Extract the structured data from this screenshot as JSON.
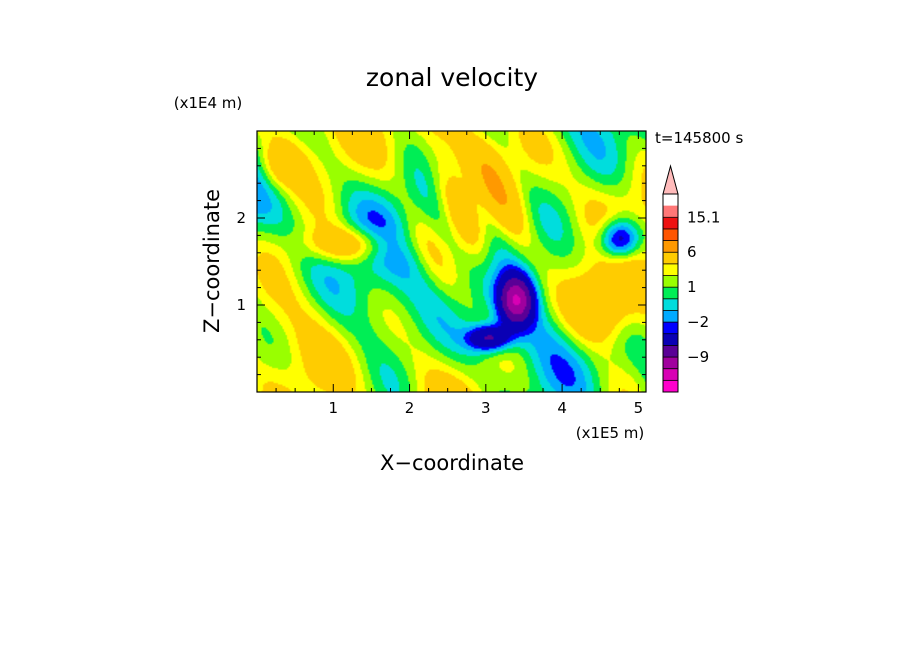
{
  "chart_data": {
    "type": "heatmap",
    "title": "zonal velocity",
    "xlabel": "X−coordinate",
    "ylabel": "Z−coordinate",
    "x_multiplier": "(x1E5 m)",
    "y_multiplier": "(x1E4 m)",
    "time_label": "t=145800 s",
    "xlim": [
      0,
      5.1
    ],
    "ylim": [
      0,
      3.0
    ],
    "x_ticks": [
      1,
      2,
      3,
      4,
      5
    ],
    "y_ticks": [
      1,
      2
    ],
    "colorbar": {
      "levels": [
        -15.1,
        -12,
        -9,
        -6,
        -3,
        -2,
        -1,
        0,
        1,
        2,
        3,
        6,
        9,
        12,
        15.1
      ],
      "colors": [
        "#ff00cc",
        "#d800b4",
        "#a0009e",
        "#5a0096",
        "#0a00b4",
        "#0000ff",
        "#00aaff",
        "#00dddd",
        "#00ee55",
        "#99ff00",
        "#ffff00",
        "#ffcc00",
        "#ff9900",
        "#ff5500",
        "#ee1111",
        "#ff7777",
        "#ffbbbb"
      ],
      "labels": [
        {
          "value": 15.1,
          "text": "15.1"
        },
        {
          "value": 6,
          "text": "6"
        },
        {
          "value": 1,
          "text": "1"
        },
        {
          "value": -2,
          "text": "−2"
        },
        {
          "value": -9,
          "text": "−9"
        }
      ]
    }
  }
}
